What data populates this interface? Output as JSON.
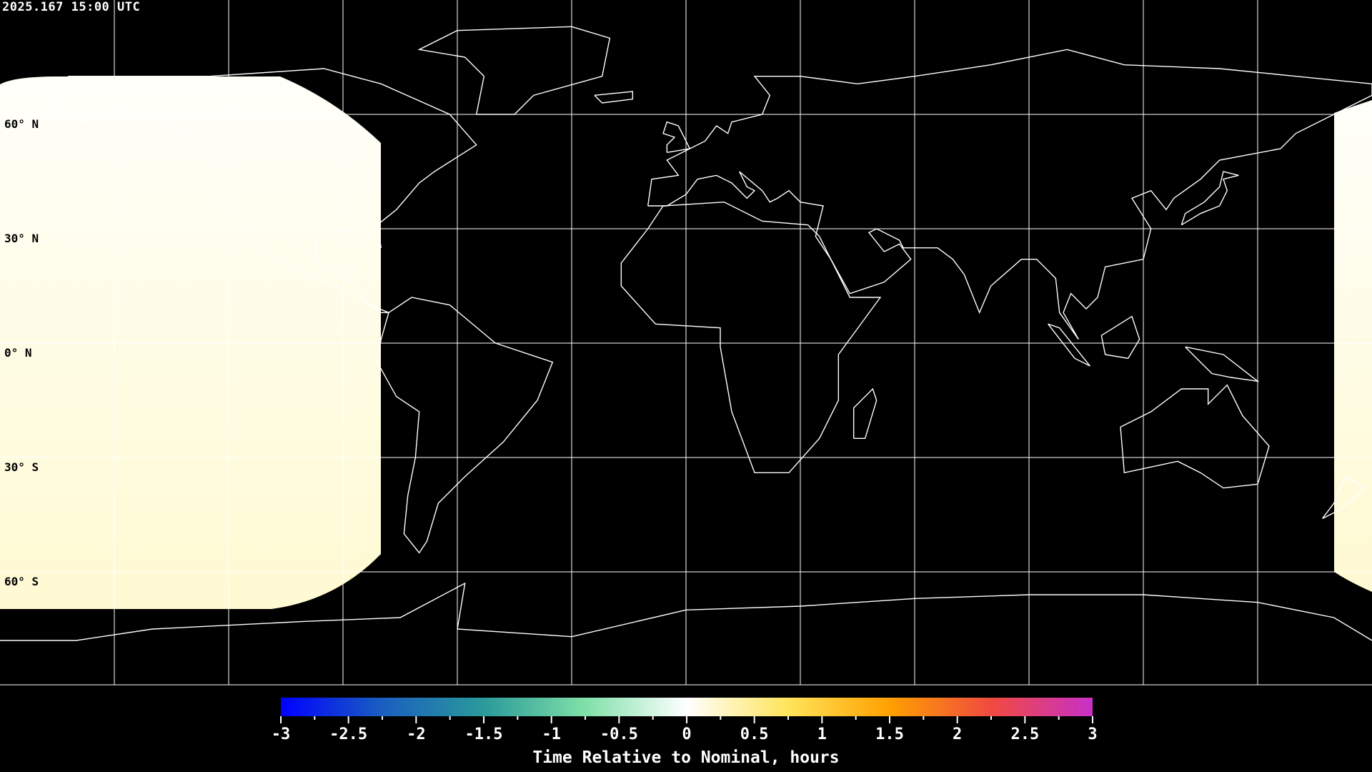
{
  "header": {
    "timestamp": "2025.167 15:00 UTC"
  },
  "map": {
    "projection": "equirectangular",
    "lon_range": [
      -180,
      180
    ],
    "lat_range": [
      -90,
      90
    ],
    "grid_spacing_deg": 30,
    "lat_labels": [
      "60° N",
      "30° N",
      "0° N",
      "30° S",
      "60° S"
    ],
    "background_color": "#000000",
    "coastline_color": "#ffffff",
    "grid_color": "#ffffff",
    "shaded_region_color_top": "#fffffa",
    "shaded_region_color_bottom": "#fffad2"
  },
  "colorbar": {
    "min": -3,
    "max": 3,
    "tick_labels": [
      "-3",
      "-2.5",
      "-2",
      "-1.5",
      "-1",
      "-0.5",
      "0",
      "0.5",
      "1",
      "1.5",
      "2",
      "2.5",
      "3"
    ],
    "title": "Time Relative to Nominal, hours",
    "colors": [
      "#0000ff",
      "#1a5fc0",
      "#2a9a9a",
      "#7fe0a8",
      "#ffffff",
      "#ffe45a",
      "#ffa000",
      "#f04a40",
      "#c830c8"
    ]
  }
}
